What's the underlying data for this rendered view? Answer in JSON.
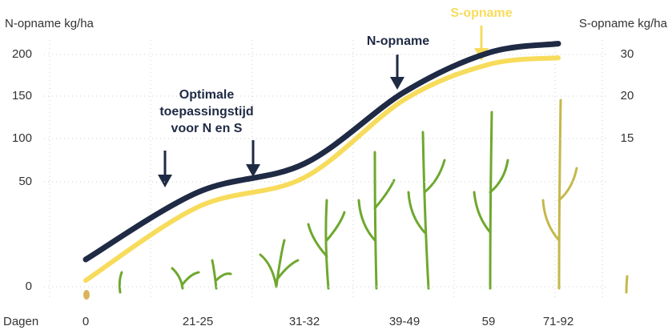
{
  "chart_data": {
    "type": "line",
    "y_label": "N-opname kg/ha",
    "y2_label": "S-opname  kg/ha",
    "x_label": "Dagen",
    "categories": [
      "0",
      "21-25",
      "31-32",
      "39-49",
      "59",
      "71-92"
    ],
    "series": [
      {
        "name": "N-opname",
        "color": "#1f2a44",
        "values": [
          13,
          45,
          71,
          155,
          202,
          213
        ]
      },
      {
        "name": "S-opname",
        "color": "#f7dc5c",
        "values": [
          3,
          38,
          55,
          146,
          188,
          196
        ]
      }
    ],
    "ylim": [
      0,
      200
    ],
    "yticks": [
      200,
      150,
      100,
      50,
      0
    ],
    "y2ticks": [
      30,
      20,
      15
    ],
    "grid": true,
    "annotations": [
      {
        "text": [
          "Optimale",
          "toepassingstijd",
          "voor N en S"
        ]
      }
    ]
  }
}
